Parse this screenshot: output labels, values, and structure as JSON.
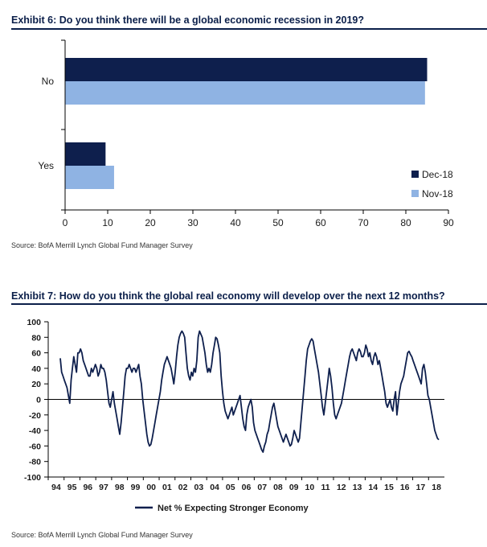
{
  "exhibit6": {
    "title": "Exhibit 6: Do you think there will be a global economic recession in 2019?",
    "source": "Source:  BofA Merrill Lynch Global Fund Manager Survey"
  },
  "exhibit7": {
    "title": "Exhibit 7: How do you think the global real economy will develop over the next 12 months?",
    "source": "Source:  BofA Merrill Lynch Global Fund Manager Survey"
  },
  "chart_data": [
    {
      "type": "bar",
      "orientation": "horizontal",
      "categories": [
        "No",
        "Yes"
      ],
      "series": [
        {
          "name": "Dec-18",
          "color": "#0e1f4d",
          "values": [
            85,
            9.5
          ]
        },
        {
          "name": "Nov-18",
          "color": "#8fb3e3",
          "values": [
            84.5,
            11.5
          ]
        }
      ],
      "xlim": [
        0,
        90
      ],
      "xticks": [
        0,
        10,
        20,
        30,
        40,
        50,
        60,
        70,
        80,
        90
      ],
      "legend": "bottom-right",
      "grid": false
    },
    {
      "type": "line",
      "x_start": "1994-07",
      "x_interval": "month",
      "xticks": [
        "94",
        "95",
        "96",
        "97",
        "98",
        "99",
        "00",
        "01",
        "02",
        "03",
        "04",
        "05",
        "06",
        "07",
        "08",
        "09",
        "10",
        "11",
        "12",
        "13",
        "14",
        "15",
        "16",
        "17",
        "18"
      ],
      "ylim": [
        -100,
        100
      ],
      "yticks": [
        100,
        80,
        60,
        40,
        20,
        0,
        -20,
        -40,
        -60,
        -80,
        -100
      ],
      "legend": "bottom-center",
      "grid": false,
      "series": [
        {
          "name": "Net % Expecting Stronger Economy",
          "color": "#0e1f4d",
          "values": [
            53,
            35,
            30,
            25,
            20,
            15,
            5,
            -5,
            25,
            40,
            55,
            45,
            35,
            60,
            60,
            65,
            60,
            50,
            45,
            40,
            35,
            30,
            30,
            40,
            35,
            40,
            45,
            40,
            30,
            35,
            45,
            40,
            40,
            35,
            25,
            10,
            -5,
            -10,
            0,
            10,
            -5,
            -15,
            -25,
            -35,
            -45,
            -30,
            -10,
            10,
            30,
            40,
            40,
            45,
            40,
            35,
            40,
            40,
            35,
            40,
            45,
            30,
            20,
            0,
            -15,
            -30,
            -45,
            -55,
            -60,
            -58,
            -50,
            -40,
            -30,
            -20,
            -10,
            0,
            10,
            25,
            35,
            45,
            50,
            55,
            50,
            45,
            40,
            30,
            20,
            35,
            55,
            70,
            80,
            85,
            88,
            85,
            80,
            60,
            40,
            30,
            25,
            35,
            30,
            40,
            35,
            50,
            80,
            88,
            84,
            80,
            70,
            60,
            45,
            35,
            40,
            35,
            45,
            60,
            70,
            80,
            78,
            70,
            60,
            30,
            10,
            -5,
            -15,
            -20,
            -25,
            -20,
            -15,
            -10,
            -20,
            -15,
            -10,
            -5,
            0,
            5,
            -10,
            -25,
            -35,
            -40,
            -20,
            -10,
            -5,
            0,
            -10,
            -30,
            -40,
            -45,
            -50,
            -55,
            -60,
            -65,
            -68,
            -60,
            -55,
            -45,
            -40,
            -30,
            -20,
            -10,
            -5,
            -15,
            -25,
            -35,
            -40,
            -45,
            -50,
            -55,
            -50,
            -45,
            -50,
            -55,
            -60,
            -58,
            -50,
            -40,
            -45,
            -50,
            -55,
            -50,
            -30,
            -10,
            10,
            30,
            50,
            65,
            70,
            75,
            78,
            75,
            65,
            55,
            45,
            35,
            20,
            5,
            -10,
            -20,
            -5,
            10,
            25,
            40,
            30,
            15,
            -5,
            -20,
            -25,
            -20,
            -15,
            -10,
            -5,
            5,
            15,
            25,
            35,
            45,
            55,
            62,
            65,
            60,
            55,
            50,
            60,
            65,
            62,
            55,
            55,
            60,
            70,
            65,
            55,
            60,
            50,
            45,
            55,
            60,
            55,
            45,
            50,
            40,
            30,
            20,
            10,
            -5,
            -10,
            -5,
            0,
            -10,
            -15,
            0,
            10,
            -20,
            -5,
            10,
            20,
            25,
            30,
            40,
            50,
            60,
            62,
            58,
            55,
            50,
            45,
            40,
            35,
            30,
            25,
            20,
            40,
            45,
            35,
            20,
            5,
            0,
            -10,
            -20,
            -30,
            -40,
            -45,
            -50,
            -52
          ]
        }
      ]
    }
  ]
}
